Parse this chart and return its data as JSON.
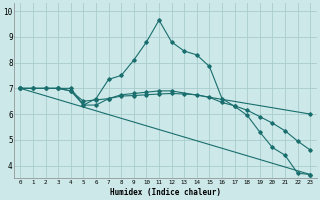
{
  "xlabel": "Humidex (Indice chaleur)",
  "bg_color": "#cce8e8",
  "grid_color": "#aacccc",
  "line_color": "#1a6e6e",
  "xlim": [
    -0.5,
    23.5
  ],
  "ylim": [
    3.5,
    10.3
  ],
  "yticks": [
    4,
    5,
    6,
    7,
    8,
    9,
    10
  ],
  "xticks": [
    0,
    1,
    2,
    3,
    4,
    5,
    6,
    7,
    8,
    9,
    10,
    11,
    12,
    13,
    14,
    15,
    16,
    17,
    18,
    19,
    20,
    21,
    22,
    23
  ],
  "lines": [
    {
      "x": [
        0,
        1,
        2,
        3,
        4,
        5,
        6,
        7,
        8,
        9,
        10,
        11,
        12,
        13,
        14,
        15,
        16,
        17,
        18,
        19,
        20,
        21,
        22,
        23
      ],
      "y": [
        7.0,
        7.0,
        7.0,
        7.0,
        7.0,
        6.35,
        6.6,
        7.35,
        7.5,
        8.1,
        8.8,
        9.65,
        8.8,
        8.45,
        8.3,
        7.85,
        6.6,
        6.3,
        5.95,
        5.3,
        4.7,
        4.4,
        3.7,
        3.65
      ]
    },
    {
      "x": [
        0,
        1,
        2,
        3,
        4,
        5,
        6,
        7,
        8,
        9,
        10,
        11,
        12,
        13,
        14,
        15,
        16,
        17,
        18,
        19,
        20,
        21,
        22,
        23
      ],
      "y": [
        7.0,
        7.0,
        7.0,
        7.0,
        6.9,
        6.5,
        6.55,
        6.6,
        6.7,
        6.72,
        6.75,
        6.78,
        6.8,
        6.78,
        6.75,
        6.65,
        6.45,
        6.32,
        6.15,
        5.9,
        5.65,
        5.35,
        4.95,
        4.6
      ]
    },
    {
      "x": [
        0,
        23
      ],
      "y": [
        7.0,
        3.65
      ]
    },
    {
      "x": [
        0,
        3,
        4,
        5,
        6,
        7,
        8,
        9,
        10,
        11,
        12,
        23
      ],
      "y": [
        7.0,
        7.0,
        6.9,
        6.35,
        6.35,
        6.6,
        6.75,
        6.8,
        6.85,
        6.9,
        6.9,
        6.0
      ]
    }
  ]
}
